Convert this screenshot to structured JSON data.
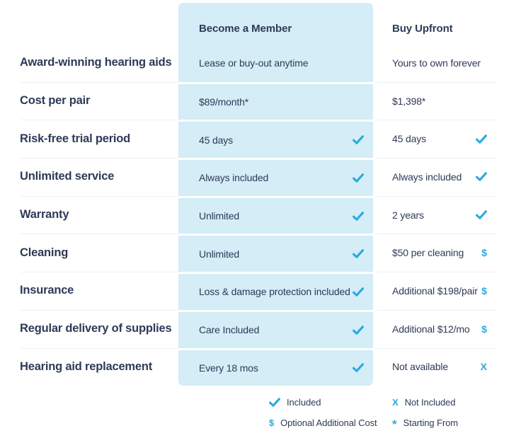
{
  "colors": {
    "accent": "#29a9e1",
    "panel_bg": "#d4edf7",
    "text": "#2e3a56",
    "separator": "#edf0f3"
  },
  "header": {
    "member": "Become a Member",
    "upfront": "Buy Upfront"
  },
  "rows": [
    {
      "label": "Award-winning hearing aids",
      "member": {
        "text": "Lease or buy-out anytime",
        "icon": "none"
      },
      "upfront": {
        "text": "Yours to own forever",
        "icon": "none"
      }
    },
    {
      "label": "Cost per pair",
      "member": {
        "text": "$89/month*",
        "icon": "none"
      },
      "upfront": {
        "text": "$1,398*",
        "icon": "none"
      }
    },
    {
      "label": "Risk-free trial period",
      "member": {
        "text": "45 days",
        "icon": "check"
      },
      "upfront": {
        "text": "45 days",
        "icon": "check"
      }
    },
    {
      "label": "Unlimited service",
      "member": {
        "text": "Always included",
        "icon": "check"
      },
      "upfront": {
        "text": "Always included",
        "icon": "check"
      }
    },
    {
      "label": "Warranty",
      "member": {
        "text": "Unlimited",
        "icon": "check"
      },
      "upfront": {
        "text": "2 years",
        "icon": "check"
      }
    },
    {
      "label": "Cleaning",
      "member": {
        "text": "Unlimited",
        "icon": "check"
      },
      "upfront": {
        "text": "$50 per cleaning",
        "icon": "dollar"
      }
    },
    {
      "label": "Insurance",
      "member": {
        "text": "Loss & damage protection included",
        "icon": "check"
      },
      "upfront": {
        "text": "Additional $198/pair",
        "icon": "dollar"
      }
    },
    {
      "label": "Regular delivery of supplies",
      "member": {
        "text": "Care Included",
        "icon": "check"
      },
      "upfront": {
        "text": "Additional $12/mo",
        "icon": "dollar"
      }
    },
    {
      "label": "Hearing aid replacement",
      "member": {
        "text": "Every 18 mos",
        "icon": "check"
      },
      "upfront": {
        "text": "Not available",
        "icon": "x"
      }
    }
  ],
  "legend": [
    {
      "icon": "check",
      "label": "Included"
    },
    {
      "icon": "x",
      "label": "Not Included"
    },
    {
      "icon": "dollar",
      "label": "Optional Additional Cost"
    },
    {
      "icon": "asterisk",
      "label": "Starting From"
    }
  ]
}
